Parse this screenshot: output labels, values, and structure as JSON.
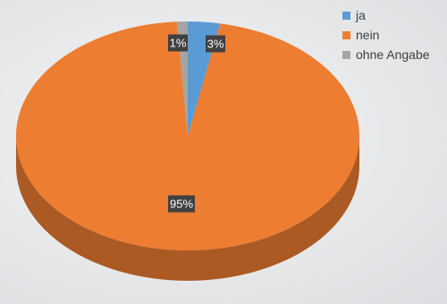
{
  "chart_data": {
    "type": "pie",
    "title": "",
    "categories": [
      "ja",
      "nein",
      "ohne Angabe"
    ],
    "values": [
      3,
      95,
      1
    ],
    "labels": [
      "3%",
      "95%",
      "1%"
    ],
    "colors": [
      "#5b9bd5",
      "#ed7d31",
      "#a5a5a5"
    ],
    "legend_position": "top-right",
    "style": "3d"
  }
}
